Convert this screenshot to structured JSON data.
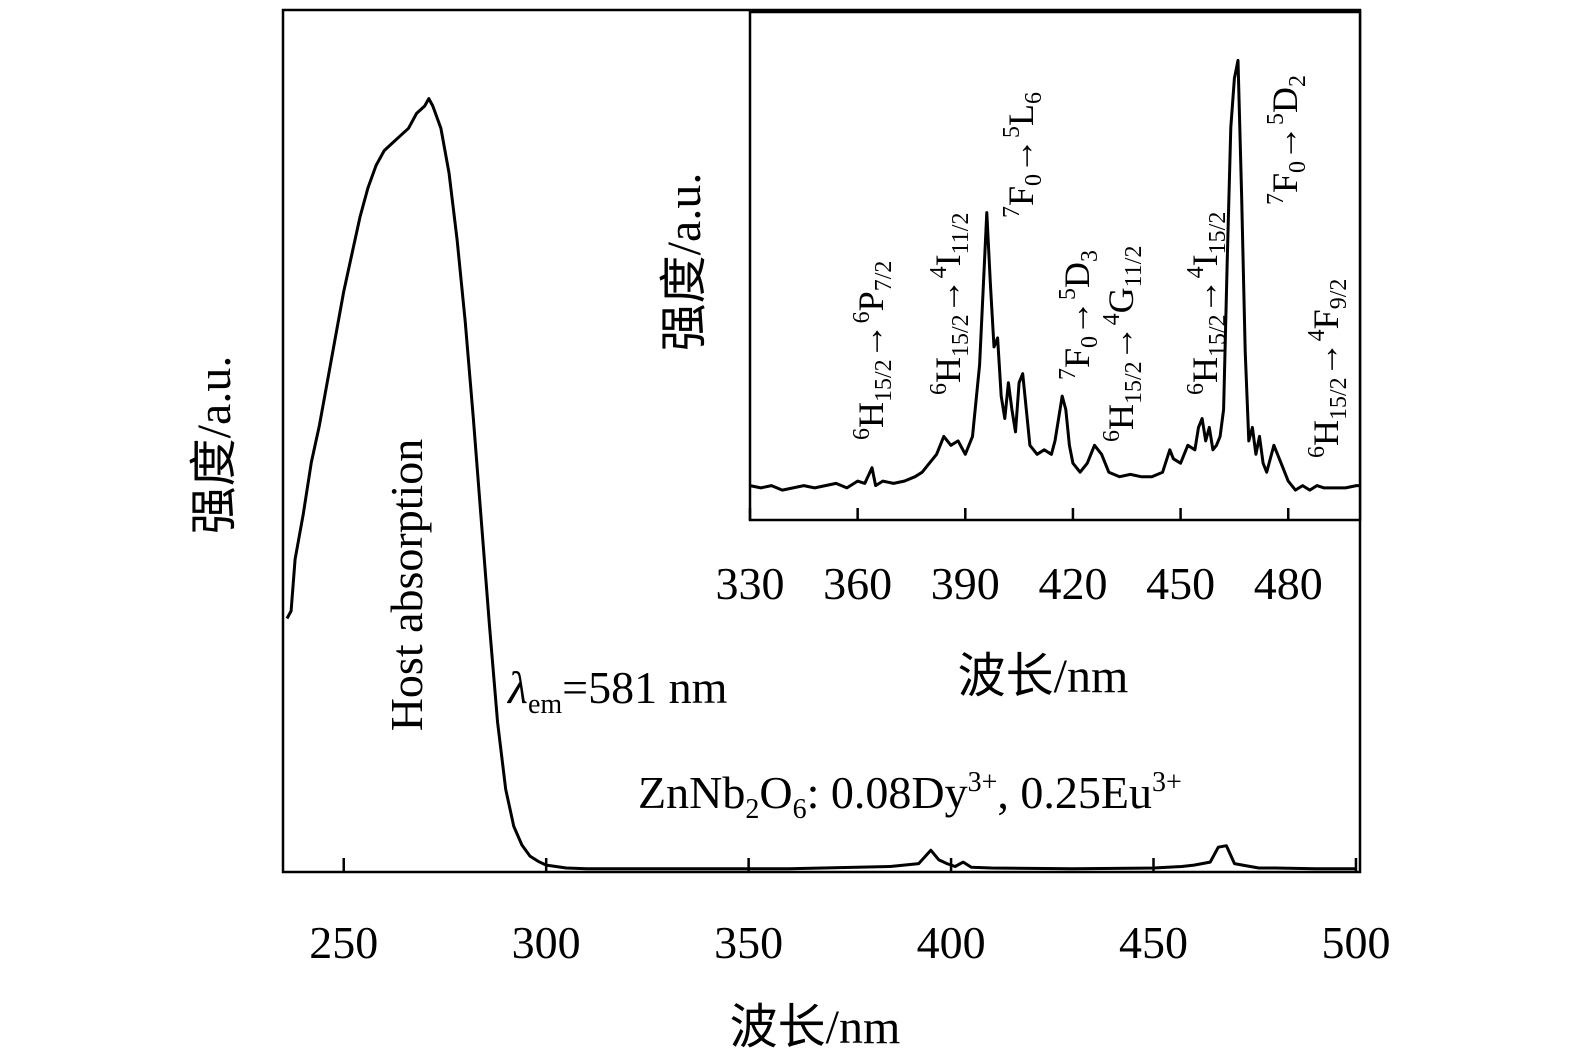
{
  "chart_data": [
    {
      "type": "line",
      "xlabel": "波长/nm",
      "ylabel": "强度/a.u.",
      "xlim": [
        235,
        501
      ],
      "ylim": [
        0,
        1.1
      ],
      "x_ticks": [
        250,
        300,
        350,
        400,
        450,
        500
      ],
      "x_tick_labels": [
        "250",
        "300",
        "350",
        "400",
        "450",
        "500"
      ],
      "y_ticks_shown": false,
      "grid": false,
      "annotations": {
        "band_label": "Host absorption",
        "excitation_label": {
          "symbol": "λ",
          "sub": "em",
          "rest": "=581 nm"
        },
        "sample_label": {
          "parts": [
            "ZnNb",
            "2",
            "O",
            "6",
            ": 0.08Dy",
            "3+",
            ", 0.25Eu",
            "3+"
          ]
        }
      },
      "series": [
        {
          "values": [
            [
              236,
              0.34
            ],
            [
              237,
              0.35
            ],
            [
              238,
              0.42
            ],
            [
              240,
              0.48
            ],
            [
              242,
              0.55
            ],
            [
              244,
              0.6
            ],
            [
              246,
              0.66
            ],
            [
              248,
              0.72
            ],
            [
              250,
              0.78
            ],
            [
              252,
              0.83
            ],
            [
              254,
              0.88
            ],
            [
              256,
              0.92
            ],
            [
              258,
              0.95
            ],
            [
              260,
              0.97
            ],
            [
              262,
              0.98
            ],
            [
              264,
              0.99
            ],
            [
              266,
              1.0
            ],
            [
              268,
              1.02
            ],
            [
              270,
              1.03
            ],
            [
              271,
              1.04
            ],
            [
              272,
              1.03
            ],
            [
              274,
              1.0
            ],
            [
              276,
              0.94
            ],
            [
              278,
              0.85
            ],
            [
              280,
              0.74
            ],
            [
              282,
              0.61
            ],
            [
              284,
              0.47
            ],
            [
              286,
              0.33
            ],
            [
              288,
              0.2
            ],
            [
              290,
              0.11
            ],
            [
              292,
              0.06
            ],
            [
              294,
              0.035
            ],
            [
              296,
              0.02
            ],
            [
              298,
              0.013
            ],
            [
              300,
              0.008
            ],
            [
              305,
              0.004
            ],
            [
              310,
              0.003
            ],
            [
              330,
              0.003
            ],
            [
              360,
              0.003
            ],
            [
              385,
              0.006
            ],
            [
              392,
              0.01
            ],
            [
              395,
              0.028
            ],
            [
              397,
              0.015
            ],
            [
              399,
              0.01
            ],
            [
              401,
              0.006
            ],
            [
              403,
              0.012
            ],
            [
              405,
              0.005
            ],
            [
              410,
              0.004
            ],
            [
              430,
              0.003
            ],
            [
              450,
              0.004
            ],
            [
              457,
              0.006
            ],
            [
              460,
              0.008
            ],
            [
              464,
              0.012
            ],
            [
              466,
              0.032
            ],
            [
              468,
              0.034
            ],
            [
              470,
              0.01
            ],
            [
              472,
              0.008
            ],
            [
              476,
              0.004
            ],
            [
              480,
              0.004
            ],
            [
              490,
              0.003
            ],
            [
              495,
              0.003
            ],
            [
              500,
              0.003
            ]
          ]
        }
      ]
    },
    {
      "type": "line",
      "xlabel": "波长/nm",
      "ylabel": "强度/a.u.",
      "xlim": [
        330,
        500
      ],
      "ylim": [
        0,
        1.05
      ],
      "x_ticks": [
        330,
        360,
        390,
        420,
        450,
        480
      ],
      "x_tick_labels": [
        "330",
        "360",
        "390",
        "420",
        "450",
        "480"
      ],
      "y_ticks_shown": false,
      "grid": false,
      "transitions": [
        {
          "parts": [
            "6",
            "H",
            "15/2",
            "→",
            "6",
            "P",
            "7/2"
          ]
        },
        {
          "parts": [
            "6",
            "H",
            "15/2",
            "→",
            "4",
            "I",
            "11/2"
          ]
        },
        {
          "parts": [
            "7",
            "F",
            "0",
            "→",
            "5",
            "L",
            "6"
          ]
        },
        {
          "parts": [
            "7",
            "F",
            "0",
            "→",
            "5",
            "D",
            "3"
          ]
        },
        {
          "parts": [
            "6",
            "H",
            "15/2",
            "→",
            "4",
            "G",
            "11/2"
          ]
        },
        {
          "parts": [
            "6",
            "H",
            "15/2",
            "→",
            "4",
            "I",
            "15/2"
          ]
        },
        {
          "parts": [
            "7",
            "F",
            "0",
            "→",
            "5",
            "D",
            "2"
          ]
        },
        {
          "parts": [
            "6",
            "H",
            "15/2",
            "→",
            "4",
            "F",
            "9/2"
          ]
        }
      ],
      "series": [
        {
          "values": [
            [
              330,
              0.05
            ],
            [
              333,
              0.045
            ],
            [
              336,
              0.05
            ],
            [
              339,
              0.04
            ],
            [
              342,
              0.045
            ],
            [
              345,
              0.05
            ],
            [
              348,
              0.045
            ],
            [
              351,
              0.05
            ],
            [
              354,
              0.055
            ],
            [
              357,
              0.045
            ],
            [
              360,
              0.06
            ],
            [
              362,
              0.055
            ],
            [
              364,
              0.09
            ],
            [
              365,
              0.05
            ],
            [
              367,
              0.06
            ],
            [
              370,
              0.055
            ],
            [
              373,
              0.06
            ],
            [
              376,
              0.07
            ],
            [
              378,
              0.08
            ],
            [
              380,
              0.1
            ],
            [
              382,
              0.12
            ],
            [
              384,
              0.16
            ],
            [
              386,
              0.14
            ],
            [
              388,
              0.15
            ],
            [
              390,
              0.12
            ],
            [
              392,
              0.16
            ],
            [
              394,
              0.32
            ],
            [
              396,
              0.66
            ],
            [
              397,
              0.5
            ],
            [
              398,
              0.36
            ],
            [
              399,
              0.38
            ],
            [
              400,
              0.25
            ],
            [
              401,
              0.2
            ],
            [
              402,
              0.28
            ],
            [
              403,
              0.22
            ],
            [
              404,
              0.17
            ],
            [
              405,
              0.28
            ],
            [
              406,
              0.3
            ],
            [
              407,
              0.22
            ],
            [
              408,
              0.14
            ],
            [
              410,
              0.12
            ],
            [
              412,
              0.13
            ],
            [
              414,
              0.12
            ],
            [
              415,
              0.15
            ],
            [
              416,
              0.2
            ],
            [
              417,
              0.25
            ],
            [
              418,
              0.22
            ],
            [
              419,
              0.14
            ],
            [
              420,
              0.1
            ],
            [
              422,
              0.08
            ],
            [
              424,
              0.1
            ],
            [
              426,
              0.14
            ],
            [
              428,
              0.12
            ],
            [
              430,
              0.08
            ],
            [
              433,
              0.07
            ],
            [
              436,
              0.075
            ],
            [
              439,
              0.07
            ],
            [
              442,
              0.07
            ],
            [
              445,
              0.08
            ],
            [
              447,
              0.13
            ],
            [
              448,
              0.11
            ],
            [
              450,
              0.1
            ],
            [
              452,
              0.14
            ],
            [
              454,
              0.13
            ],
            [
              455,
              0.18
            ],
            [
              456,
              0.2
            ],
            [
              457,
              0.15
            ],
            [
              458,
              0.18
            ],
            [
              459,
              0.13
            ],
            [
              460,
              0.14
            ],
            [
              461,
              0.16
            ],
            [
              462,
              0.22
            ],
            [
              463,
              0.55
            ],
            [
              464,
              0.85
            ],
            [
              465,
              0.96
            ],
            [
              466,
              1.0
            ],
            [
              467,
              0.7
            ],
            [
              468,
              0.35
            ],
            [
              469,
              0.15
            ],
            [
              470,
              0.18
            ],
            [
              471,
              0.12
            ],
            [
              472,
              0.16
            ],
            [
              473,
              0.1
            ],
            [
              474,
              0.08
            ],
            [
              476,
              0.14
            ],
            [
              478,
              0.1
            ],
            [
              480,
              0.06
            ],
            [
              482,
              0.04
            ],
            [
              484,
              0.05
            ],
            [
              486,
              0.04
            ],
            [
              488,
              0.05
            ],
            [
              490,
              0.045
            ],
            [
              493,
              0.045
            ],
            [
              496,
              0.045
            ],
            [
              499,
              0.05
            ],
            [
              500,
              0.05
            ]
          ]
        }
      ]
    }
  ]
}
